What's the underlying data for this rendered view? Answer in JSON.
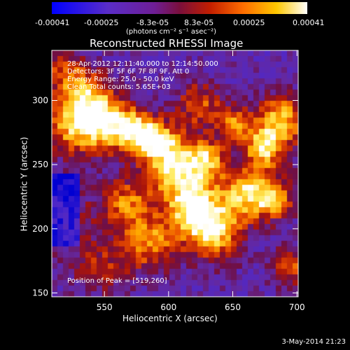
{
  "colorbar": {
    "tick_labels": [
      "-0.00041",
      "-0.00025",
      "-8.3e-05",
      "8.3e-05",
      "0.00025",
      "0.00041"
    ],
    "units": "(photons cm⁻² s⁻¹ asec⁻²)"
  },
  "title": "Reconstructed RHESSI Image",
  "annotations": {
    "time_range": "28-Apr-2012 12:11:40.000 to 12:14:50.000",
    "detectors": "Detectors: 3F 5F 6F 7F 8F 9F, Att 0",
    "energy_range": "Energy Range: 25.0 - 50.0 keV",
    "method": "Clean     Total counts: 5.65E+03",
    "peak": "Position of Peak = [519,260]"
  },
  "footer_date": "3-May-2014 21:23",
  "chart_data": {
    "type": "heatmap",
    "title": "Reconstructed RHESSI Image",
    "xlabel": "Heliocentric X (arcsec)",
    "ylabel": "Heliocentric Y (arcsec)",
    "xlim": [
      509,
      701
    ],
    "ylim": [
      147,
      339
    ],
    "xticks": [
      550,
      600,
      650,
      700
    ],
    "yticks": [
      150,
      200,
      250,
      300
    ],
    "colorbar_range": [
      -0.00041,
      0.00041
    ],
    "colors": {
      "low": "#0000ff",
      "mid_low": "#5a2dc8",
      "zero": "#7a0f3c",
      "mid_high": "#ff6e00",
      "high": "#ffffff"
    },
    "peak_position": [
      519,
      260
    ]
  }
}
